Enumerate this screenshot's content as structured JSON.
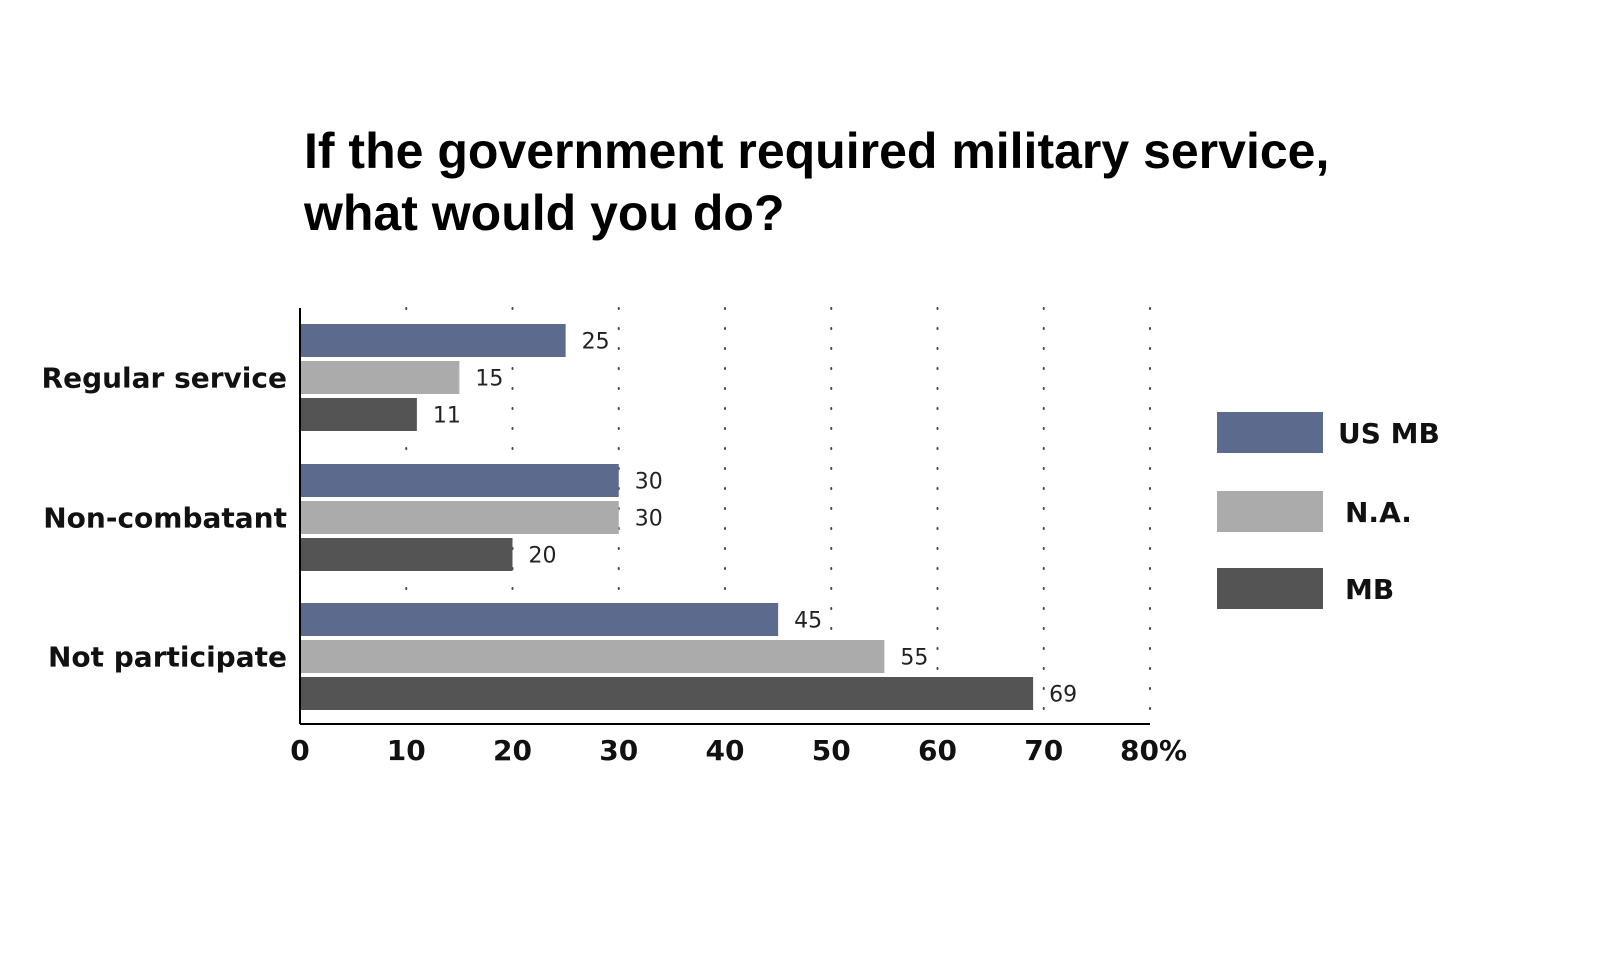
{
  "chart_data": {
    "type": "bar",
    "orientation": "horizontal",
    "title_lines": [
      "If the government required military service,",
      "what would you do?"
    ],
    "categories": [
      "Regular service",
      "Non-combatant",
      "Not participate"
    ],
    "series": [
      {
        "name": "US MB",
        "color": "#5c6a8e",
        "values": [
          25,
          30,
          45
        ]
      },
      {
        "name": "N.A.",
        "color": "#ababab",
        "values": [
          15,
          30,
          55
        ]
      },
      {
        "name": "MB",
        "color": "#545454",
        "values": [
          11,
          20,
          69
        ]
      }
    ],
    "xlim": [
      0,
      80
    ],
    "xticks": [
      0,
      10,
      20,
      30,
      40,
      50,
      60,
      70,
      80
    ],
    "xtick_labels": [
      "0",
      "10",
      "20",
      "30",
      "40",
      "50",
      "60",
      "70",
      "80%"
    ],
    "grid": "vertical dotted",
    "legend_position": "right"
  }
}
